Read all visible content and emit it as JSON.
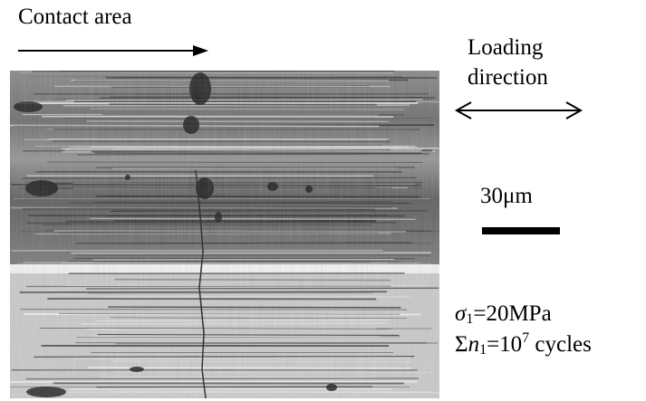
{
  "contact": {
    "label": "Contact area"
  },
  "loading": {
    "line1": "Loading",
    "line2": "direction"
  },
  "scale": {
    "label": "30μm"
  },
  "params": {
    "sigma_symbol": "σ",
    "sigma_sub": "1",
    "sigma_value": "=20MPa",
    "sum_symbol": "Σ",
    "n_symbol": "n",
    "n_sub": "1",
    "eq_base": "=10",
    "exponent": "7",
    "cycles": " cycles"
  },
  "colors": {
    "ink": "#000000",
    "background": "#ffffff"
  }
}
